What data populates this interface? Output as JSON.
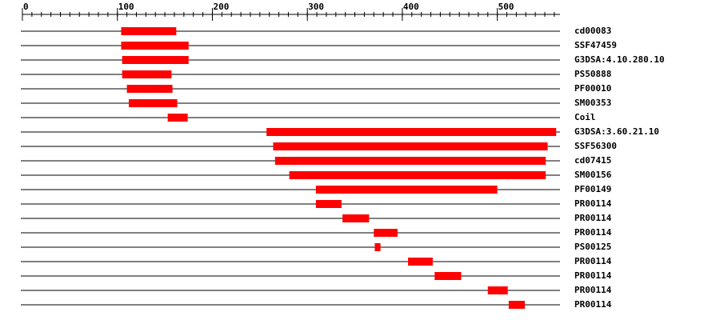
{
  "chart_data": {
    "type": "range",
    "categories": [
      "cd00083",
      "SSF47459",
      "G3DSA:4.10.280.10",
      "PS50888",
      "PF00010",
      "SM00353",
      "Coil",
      "G3DSA:3.60.21.10",
      "SSF56300",
      "cd07415",
      "SM00156",
      "PF00149",
      "PR00114",
      "PR00114",
      "PR00114",
      "PS00125",
      "PR00114",
      "PR00114",
      "PR00114",
      "PR00114"
    ],
    "values": [
      [
        104,
        162
      ],
      [
        104,
        175
      ],
      [
        105,
        175
      ],
      [
        105,
        157
      ],
      [
        110,
        158
      ],
      [
        112,
        163
      ],
      [
        153,
        174
      ],
      [
        257,
        562
      ],
      [
        264,
        553
      ],
      [
        266,
        551
      ],
      [
        281,
        551
      ],
      [
        309,
        500
      ],
      [
        309,
        336
      ],
      [
        337,
        365
      ],
      [
        370,
        395
      ],
      [
        371,
        377
      ],
      [
        406,
        432
      ],
      [
        434,
        462
      ],
      [
        490,
        511
      ],
      [
        512,
        529
      ]
    ],
    "color": "#ff0000",
    "xlim": [
      0,
      566
    ],
    "xticks": [
      0,
      100,
      200,
      300,
      400,
      500
    ],
    "minor_tick_step": 10
  }
}
